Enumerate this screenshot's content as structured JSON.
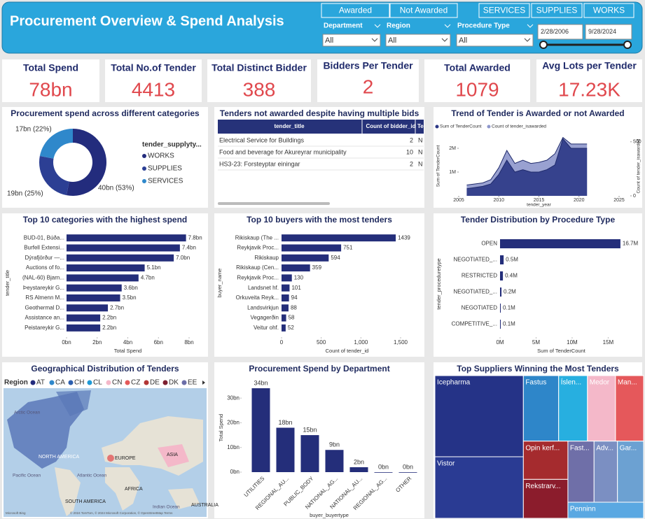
{
  "header": {
    "title": "Procurement Overview & Spend Analysis",
    "buttons": [
      "Awarded",
      "Not Awarded",
      "SERVICES",
      "SUPPLIES",
      "WORKS"
    ],
    "filters": [
      {
        "label": "Department",
        "value": "All"
      },
      {
        "label": "Region",
        "value": "All"
      },
      {
        "label": "Procedure Type",
        "value": "All"
      }
    ],
    "date_range": [
      "2/28/2006",
      "9/28/2024"
    ]
  },
  "kpis": [
    {
      "label": "Total Spend",
      "value": "78bn"
    },
    {
      "label": "Total No.of Tender",
      "value": "4413"
    },
    {
      "label": "Total Distinct Bidder",
      "value": "388"
    },
    {
      "label": "Bidders Per Tender",
      "value": "2"
    },
    {
      "label": "Total Awarded",
      "value": "1079"
    },
    {
      "label": "Avg Lots per Tender",
      "value": "17.23K"
    }
  ],
  "table": {
    "title": "Tenders not awarded despite having multiple bids",
    "columns": [
      "tender_title",
      "Count of bidder_id",
      "Te"
    ],
    "rows": [
      [
        "Electrical Service for Buildings",
        "2",
        "N"
      ],
      [
        "Food and beverage for Akureyrar municipality",
        "10",
        "N"
      ],
      [
        "HS3-23: Forsteyptar einingar",
        "2",
        "N"
      ]
    ]
  },
  "chart_data": [
    {
      "type": "pie",
      "title": "Procurement spend across different categories",
      "legend_title": "tender_supplyty...",
      "categories": [
        "WORKS",
        "SUPPLIES",
        "SERVICES"
      ],
      "values": [
        53,
        25,
        22
      ],
      "value_labels": [
        "40bn (53%)",
        "19bn (25%)",
        "17bn (22%)"
      ],
      "colors": [
        "#232c7d",
        "#2c3f94",
        "#2f88cb"
      ]
    },
    {
      "type": "area",
      "title": "Trend of Tender is Awarded or not Awarded",
      "x_label": "tender_year",
      "y_label": "Sum of TenderCount",
      "y2_label": "Count of tender_isawarded",
      "x": [
        2006,
        2007,
        2008,
        2009,
        2010,
        2011,
        2012,
        2013,
        2014,
        2015,
        2016,
        2017,
        2018,
        2019,
        2020,
        2021
      ],
      "series": [
        {
          "name": "Sum of TenderCount",
          "color": "#2b3785",
          "values": [
            0.3,
            0.35,
            0.4,
            0.5,
            0.9,
            1.5,
            1.0,
            1.1,
            1.0,
            1.0,
            1.1,
            1.3,
            2.4,
            2.0,
            2.0,
            2.0
          ]
        },
        {
          "name": "Count of tender_isawarded",
          "color": "#8e97cc",
          "axis": "y2",
          "values": [
            100,
            110,
            120,
            150,
            260,
            420,
            300,
            330,
            300,
            310,
            330,
            390,
            540,
            480,
            480,
            480
          ]
        }
      ],
      "xlim": [
        2005,
        2025
      ],
      "xticks": [
        2005,
        2010,
        2015,
        2020,
        2025
      ],
      "ylim": [
        0,
        2.5
      ],
      "yticks": [
        {
          "value": 1,
          "label": "1M"
        },
        {
          "value": 2,
          "label": "2M"
        }
      ],
      "y2lim": [
        0,
        550
      ],
      "y2ticks": [
        0,
        500
      ]
    },
    {
      "type": "hbar",
      "title": "Top 10 categories with the highest spend",
      "x_label": "Total Spend",
      "y_label": "tender_title",
      "color": "#242e7a",
      "categories": [
        "BUD-01, Búða...",
        "Burfell Extensi...",
        "Dýrafjörður —...",
        "Auctions of fo...",
        "(NAL-60) Bjarn...",
        "Þeystareykir G...",
        "RS Almenn M...",
        "Geothermal D...",
        "Assistance an...",
        "Peistareykir G..."
      ],
      "values": [
        7.8,
        7.4,
        7.0,
        5.1,
        4.7,
        3.6,
        3.5,
        2.7,
        2.2,
        2.2
      ],
      "value_labels": [
        "7.8bn",
        "7.4bn",
        "7.0bn",
        "5.1bn",
        "4.7bn",
        "3.6bn",
        "3.5bn",
        "2.7bn",
        "2.2bn",
        "2.2bn"
      ],
      "xlim": [
        0,
        8
      ],
      "xticks": [
        {
          "value": 0,
          "label": "0bn"
        },
        {
          "value": 2,
          "label": "2bn"
        },
        {
          "value": 4,
          "label": "4bn"
        },
        {
          "value": 6,
          "label": "6bn"
        },
        {
          "value": 8,
          "label": "8bn"
        }
      ]
    },
    {
      "type": "hbar",
      "title": "Top 10 buyers with the most tenders",
      "x_label": "Count of tender_id",
      "y_label": "buyer_name",
      "color": "#242e7a",
      "categories": [
        "Rikiskaup (The ...",
        "Reykjavik Proc...",
        "Rikiskaup",
        "Rikiskaup (Cen...",
        "Reykjavik Proc...",
        "Landsnet hf.",
        "Orkuveita Reyk...",
        "Landsvirkjun",
        "Vegagerðin",
        "Veitur ohf."
      ],
      "values": [
        1439,
        751,
        594,
        359,
        130,
        101,
        94,
        88,
        58,
        52
      ],
      "xlim": [
        0,
        1650
      ],
      "xticks": [
        0,
        500,
        {
          "value": 1000,
          "label": "1,000"
        },
        {
          "value": 1500,
          "label": "1,500"
        }
      ]
    },
    {
      "type": "hbar",
      "title": "Tender Distribution by Procedure Type",
      "x_label": "Sum of TenderCount",
      "y_label": "tender_proceduretype",
      "color": "#242e7a",
      "categories": [
        "OPEN",
        "NEGOTIATED_...",
        "RESTRICTED",
        "NEGOTIATED_...",
        "NEGOTIATED",
        "COMPETITIVE_..."
      ],
      "values": [
        16.7,
        0.5,
        0.4,
        0.2,
        0.1,
        0.1
      ],
      "value_labels": [
        "16.7M",
        "0.5M",
        "0.4M",
        "0.2M",
        "0.1M",
        "0.1M"
      ],
      "xlim": [
        0,
        17
      ],
      "xticks": [
        {
          "value": 0,
          "label": "0M"
        },
        {
          "value": 5,
          "label": "5M"
        },
        {
          "value": 10,
          "label": "10M"
        },
        {
          "value": 15,
          "label": "15M"
        }
      ]
    },
    {
      "type": "map",
      "title": "Geographical Distribution of Tenders",
      "legend_title": "Region",
      "categories": [
        "AT",
        "CA",
        "CH",
        "CL",
        "CN",
        "CZ",
        "DE",
        "DK",
        "EE"
      ],
      "colors": [
        "#232c7d",
        "#2f88cb",
        "#2c5fae",
        "#1f9ad6",
        "#f4b8c9",
        "#e45a5a",
        "#b23636",
        "#7c1f30",
        "#6b6ea8"
      ],
      "labels": [
        "Arctic Ocean",
        "NORTH AMERICA",
        "EUROPE",
        "ASIA",
        "Atlantic Ocean",
        "Pacific Ocean",
        "AFRICA",
        "SOUTH AMERICA",
        "Indian Ocean",
        "AUSTRALIA"
      ],
      "attribution": [
        "Microsoft Bing",
        "© 2024 TomTom, © 2024 Microsoft Corporation, © OpenStreetMap  Terms"
      ]
    },
    {
      "type": "vbar",
      "title": "Procurement Spend by Department",
      "x_label": "buyer_buyertype",
      "y_label": "Total Spend",
      "color": "#242e7a",
      "categories": [
        "UTILITIES",
        "REGIONAL_AU...",
        "PUBLIC_BODY",
        "NATIONAL_AG...",
        "NATIONAL_AU...",
        "REGIONAL_AG...",
        "OTHER"
      ],
      "values": [
        34,
        18,
        15,
        9,
        2,
        0,
        0
      ],
      "value_labels": [
        "34bn",
        "18bn",
        "15bn",
        "9bn",
        "2bn",
        "0bn",
        "0bn"
      ],
      "ylim": [
        0,
        36
      ],
      "yticks": [
        {
          "value": 0,
          "label": "0bn"
        },
        {
          "value": 10,
          "label": "10bn"
        },
        {
          "value": 20,
          "label": "20bn"
        },
        {
          "value": 30,
          "label": "30bn"
        }
      ]
    },
    {
      "type": "treemap",
      "title": "Top Suppliers Winning the Most Tenders",
      "categories": [
        "Icepharma",
        "Vistor",
        "Fastus",
        "Íslen...",
        "Medor",
        "Man...",
        "Opin kerf...",
        "Rekstrarv...",
        "Fast...",
        "Adv...",
        "Gar...",
        "Penninn"
      ],
      "values": [
        472,
        358,
        152,
        124,
        121,
        121,
        112,
        114,
        105,
        94,
        105,
        80
      ],
      "colors": [
        "#253387",
        "#2a3b93",
        "#2e86c9",
        "#27afe0",
        "#f4b8c9",
        "#e5585b",
        "#a52b2e",
        "#8b1c2c",
        "#6f6fa8",
        "#7b8fc2",
        "#6ca1d2",
        "#5aa8e2"
      ]
    }
  ]
}
